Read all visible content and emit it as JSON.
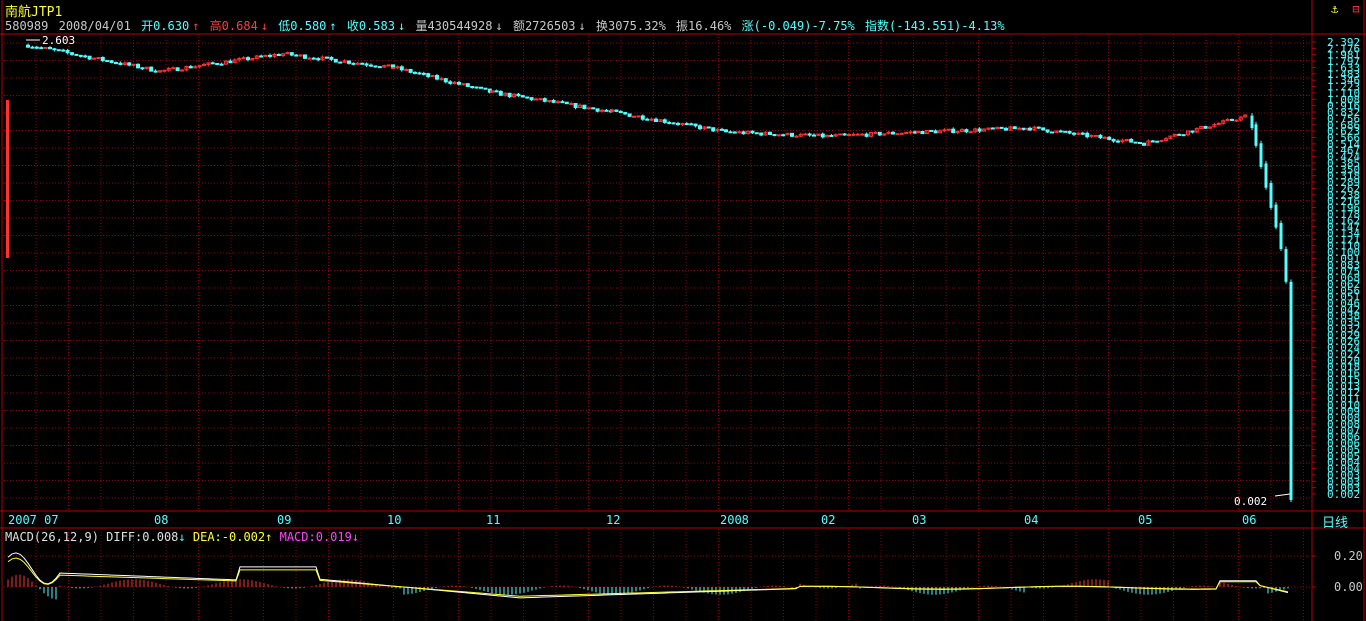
{
  "window": {
    "title": "南航JTP1",
    "buttons": [
      {
        "icon": "anchor-icon",
        "glyph": "⚓",
        "color": "#ffff33"
      },
      {
        "icon": "window-icon",
        "glyph": "⊟",
        "color": "#ff3c3c"
      }
    ]
  },
  "quote": {
    "code": "580989",
    "date": "2008/04/01",
    "open_label": "开0.630",
    "high_label": "高0.684",
    "low_label": "低0.580",
    "close_label": "收0.583",
    "volume_label": "量430544928",
    "amount_label": "额2726503",
    "turnover_label": "换3075.32%",
    "amplitude_label": "振16.46%",
    "change_label": "涨(-0.049)-7.75%",
    "index_label": "指数(-143.551)-4.13%"
  },
  "chart": {
    "max_label": "2.603",
    "min_label": "0.002",
    "period_label": "日线",
    "date_labels": [
      "2007 07",
      "08",
      "09",
      "10",
      "11",
      "12",
      "2008",
      "02",
      "03",
      "04",
      "05",
      "06"
    ],
    "y_axis_labels": [
      "2.392",
      "2.176",
      "1.981",
      "1.797",
      "1.633",
      "1.483",
      "1.346",
      "1.223",
      "1.110",
      "1.008",
      "0.916",
      "0.832",
      "0.756",
      "0.686",
      "0.623",
      "0.566",
      "0.514",
      "0.467",
      "0.424",
      "0.385",
      "0.350",
      "0.318",
      "0.289",
      "0.262",
      "0.238",
      "0.216",
      "0.196",
      "0.178",
      "0.162",
      "0.147",
      "0.134",
      "0.121",
      "0.110",
      "0.100",
      "0.091",
      "0.083",
      "0.075",
      "0.068",
      "0.062",
      "0.056",
      "0.051",
      "0.046",
      "0.042",
      "0.038",
      "0.035",
      "0.032",
      "0.029",
      "0.026",
      "0.024",
      "0.022",
      "0.020",
      "0.018",
      "0.016",
      "0.015",
      "0.013",
      "0.012",
      "0.011",
      "0.010",
      "0.009",
      "0.008",
      "0.008",
      "0.007",
      "0.006",
      "0.006",
      "0.005",
      "0.005",
      "0.004",
      "0.004",
      "0.003",
      "0.003",
      "0.003",
      "0.002"
    ],
    "colors": {
      "up": "#ff3232",
      "down": "#54ffff",
      "grid": "#8c0000",
      "border": "#b40000"
    }
  },
  "macd": {
    "name": "MACD(26,12,9)",
    "diff_label": "DIFF:0.008",
    "dea_label": "DEA:-0.002",
    "macd_label": "MACD:0.019",
    "y_labels": [
      "0.20",
      "0.00"
    ]
  },
  "chart_data": {
    "type": "candlestick",
    "title": "南航JTP1",
    "x_labels": [
      "2007 07",
      "08",
      "09",
      "10",
      "11",
      "12",
      "2008",
      "02",
      "03",
      "04",
      "05",
      "06"
    ],
    "ohlc_last": {
      "date": "2008/04/01",
      "open": 0.63,
      "high": 0.684,
      "low": 0.58,
      "close": 0.583
    },
    "range": {
      "max": 2.603,
      "min": 0.002
    },
    "close_trend": [
      {
        "x": "2007 07",
        "y": 2.4
      },
      {
        "x": "08",
        "y": 1.6
      },
      {
        "x": "09",
        "y": 2.1
      },
      {
        "x": "10",
        "y": 1.7
      },
      {
        "x": "11",
        "y": 1.15
      },
      {
        "x": "12",
        "y": 0.85
      },
      {
        "x": "2008",
        "y": 0.62
      },
      {
        "x": "02",
        "y": 0.58
      },
      {
        "x": "03",
        "y": 0.62
      },
      {
        "x": "04",
        "y": 0.66
      },
      {
        "x": "05",
        "y": 0.52
      },
      {
        "x": "06",
        "y": 0.8
      }
    ],
    "macd": {
      "name": "MACD(26,12,9)",
      "diff": 0.008,
      "dea": -0.002,
      "macd": 0.019,
      "ylim": [
        -0.06,
        0.28
      ]
    }
  }
}
